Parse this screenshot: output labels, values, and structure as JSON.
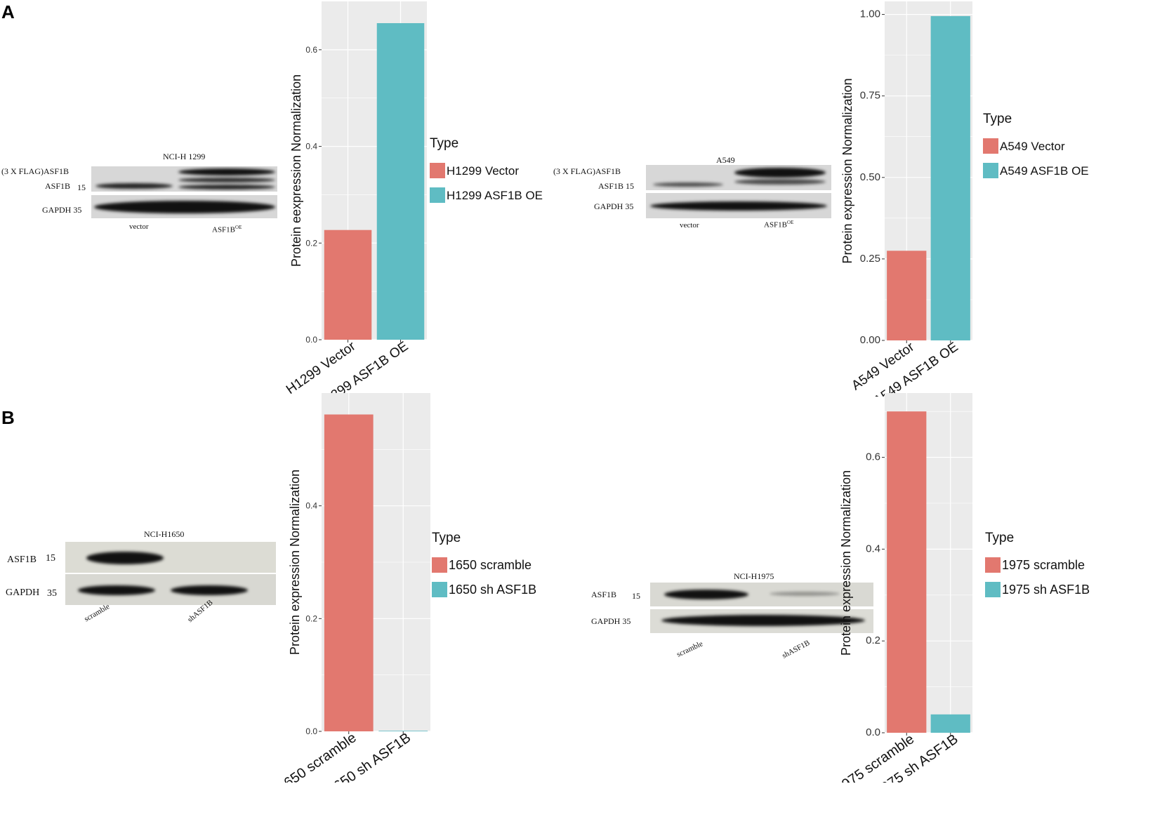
{
  "panels": {
    "a": "A",
    "b": "B"
  },
  "colors": {
    "series1": "#e2786f",
    "series2": "#5fbcc3",
    "panel_bg": "#ebebeb",
    "grid": "#ffffff"
  },
  "blots": {
    "h1299": {
      "title": "NCI-H 1299",
      "row1": "(3 X FLAG)ASF1B",
      "row2": "ASF1B",
      "row2_mw": "15",
      "row3": "GAPDH 35",
      "lane1": "vector",
      "lane2": "ASF1B",
      "lane2_sup": "OE"
    },
    "a549": {
      "title": "A549",
      "row1": "(3 X FLAG)ASF1B",
      "row2": "ASF1B 15",
      "row3": "GAPDH  35",
      "lane1": "vector",
      "lane2": "ASF1B",
      "lane2_sup": "OE"
    },
    "h1650": {
      "title": "NCI-H1650",
      "row1": "ASF1B",
      "row1_mw": "15",
      "row2": "GAPDH",
      "row2_mw": "35",
      "lane1": "scramble",
      "lane2": "shASF1B"
    },
    "h1975": {
      "title": "NCI-H1975",
      "row1": "ASF1B",
      "row1_mw": "15",
      "row2": "GAPDH 35",
      "lane1": "scramble",
      "lane2": "shASF1B"
    }
  },
  "chart_data": [
    {
      "type": "bar",
      "categories": [
        "H1299  Vector",
        "H1299 ASF1B OE"
      ],
      "values": [
        0.227,
        0.655
      ],
      "ylabel": "Protein eexpression Normalization",
      "ylim": [
        0,
        0.7
      ],
      "yticks": [
        "0.0",
        "0.2",
        "0.4",
        "0.6"
      ],
      "legend_title": "Type",
      "legend": [
        "H1299   Vector",
        "H1299 ASF1B OE"
      ],
      "grid": true,
      "legend_position": "right"
    },
    {
      "type": "bar",
      "categories": [
        "A549  Vector",
        "A549 ASF1B OE"
      ],
      "values": [
        0.275,
        0.995
      ],
      "ylabel": "Protein expression Normalization",
      "ylim": [
        0,
        1.04
      ],
      "yticks": [
        "0.00",
        "0.25",
        "0.50",
        "0.75",
        "1.00"
      ],
      "legend_title": "Type",
      "legend": [
        "A549    Vector",
        "A549 ASF1B OE"
      ],
      "grid": true,
      "legend_position": "right"
    },
    {
      "type": "bar",
      "categories": [
        "1650  scramble",
        "1650  sh  ASF1B"
      ],
      "values": [
        0.562,
        0.001
      ],
      "ylabel": "Protein expression Normalization",
      "ylim": [
        0,
        0.6
      ],
      "yticks": [
        "0.0",
        "0.2",
        "0.4"
      ],
      "legend_title": "Type",
      "legend": [
        "1650  scramble",
        "1650  sh  ASF1B"
      ],
      "grid": true,
      "legend_position": "right"
    },
    {
      "type": "bar",
      "categories": [
        "1975  scramble",
        "1975  sh  ASF1B"
      ],
      "values": [
        0.7,
        0.04
      ],
      "ylabel": "Protein expression Normalization",
      "ylim": [
        0,
        0.74
      ],
      "yticks": [
        "0.0",
        "0.2",
        "0.4",
        "0.6"
      ],
      "legend_title": "Type",
      "legend": [
        "1975  scramble",
        "1975  sh  ASF1B"
      ],
      "grid": true,
      "legend_position": "right"
    }
  ]
}
